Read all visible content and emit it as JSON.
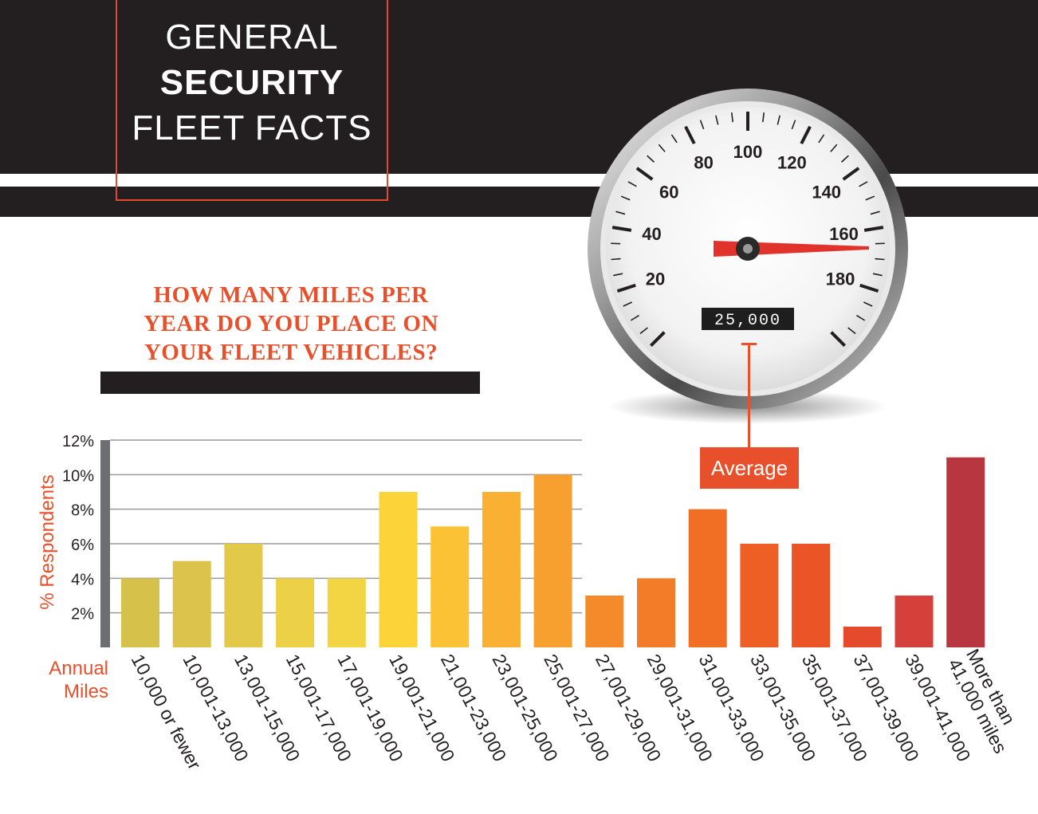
{
  "header": {
    "title_line1": "GENERAL",
    "title_line2": "SECURITY",
    "title_line3": "FLEET FACTS"
  },
  "question": {
    "line1": "HOW MANY MILES PER",
    "line2": "YEAR DO YOU PLACE ON",
    "line3": "YOUR FLEET VEHICLES?"
  },
  "gauge": {
    "ticks": [
      "20",
      "40",
      "60",
      "80",
      "100",
      "120",
      "140",
      "160",
      "180"
    ],
    "odometer": "25,000",
    "average_label": "Average"
  },
  "colors": {
    "accent": "#e8502b",
    "dark": "#231f20"
  },
  "chart_data": {
    "type": "bar",
    "xlabel": "Annual Miles",
    "ylabel": "% Respondents",
    "ylim": [
      0,
      12
    ],
    "yticks": [
      "2%",
      "4%",
      "6%",
      "8%",
      "10%",
      "12%"
    ],
    "categories": [
      "10,000 or fewer",
      "10,001-13,000",
      "13,001-15,000",
      "15,001-17,000",
      "17,001-19,000",
      "19,001-21,000",
      "21,001-23,000",
      "23,001-25,000",
      "25,001-27,000",
      "27,001-29,000",
      "29,001-31,000",
      "31,001-33,000",
      "33,001-35,000",
      "35,001-37,000",
      "37,001-39,000",
      "39,001-41,000",
      "More than 41,000 miles"
    ],
    "values": [
      4,
      5,
      6,
      4,
      4,
      9,
      7,
      9,
      10,
      3,
      4,
      8,
      6,
      6,
      1.2,
      3,
      11
    ],
    "bar_colors": [
      "#d6c24a",
      "#dcc34b",
      "#e3c94a",
      "#ecd045",
      "#f3d543",
      "#fdd33a",
      "#fbc236",
      "#fab133",
      "#f8a02f",
      "#f58a2a",
      "#f37c28",
      "#f16e25",
      "#ee5f25",
      "#eb5426",
      "#e54a2c",
      "#d5403a",
      "#b8363f"
    ]
  }
}
